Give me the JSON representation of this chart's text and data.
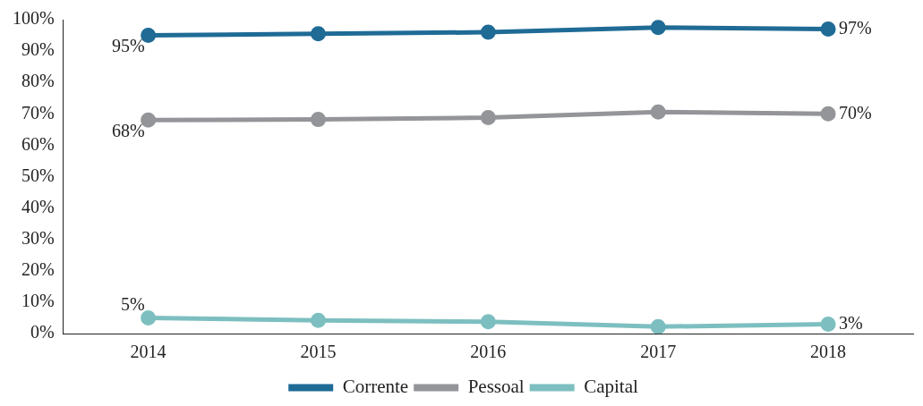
{
  "chart_data": {
    "type": "line",
    "categories": [
      "2014",
      "2015",
      "2016",
      "2017",
      "2018"
    ],
    "series": [
      {
        "name": "Corrente",
        "color": "#1f6b96",
        "values": [
          95,
          95.5,
          96,
          97.5,
          97
        ],
        "value_labels": [
          "95%",
          null,
          null,
          null,
          "97%"
        ]
      },
      {
        "name": "Pessoal",
        "color": "#939598",
        "values": [
          68,
          68.2,
          68.8,
          70.6,
          70
        ],
        "value_labels": [
          "68%",
          null,
          null,
          null,
          "70%"
        ]
      },
      {
        "name": "Capital",
        "color": "#7dbfc0",
        "values": [
          5,
          4.2,
          3.8,
          2.2,
          3
        ],
        "value_labels": [
          "5%",
          null,
          null,
          null,
          "3%"
        ]
      }
    ],
    "ylim": [
      0,
      100
    ],
    "yticks": [
      {
        "value": 0,
        "label": "0%"
      },
      {
        "value": 10,
        "label": "10%"
      },
      {
        "value": 20,
        "label": "20%"
      },
      {
        "value": 30,
        "label": "30%"
      },
      {
        "value": 40,
        "label": "40%"
      },
      {
        "value": 50,
        "label": "50%"
      },
      {
        "value": 60,
        "label": "60%"
      },
      {
        "value": 70,
        "label": "70%"
      },
      {
        "value": 80,
        "label": "80%"
      },
      {
        "value": 90,
        "label": "90%"
      },
      {
        "value": 100,
        "label": "100%"
      }
    ],
    "grid": false,
    "legend": "bottom",
    "marker": "circle",
    "line_style": "solid"
  }
}
